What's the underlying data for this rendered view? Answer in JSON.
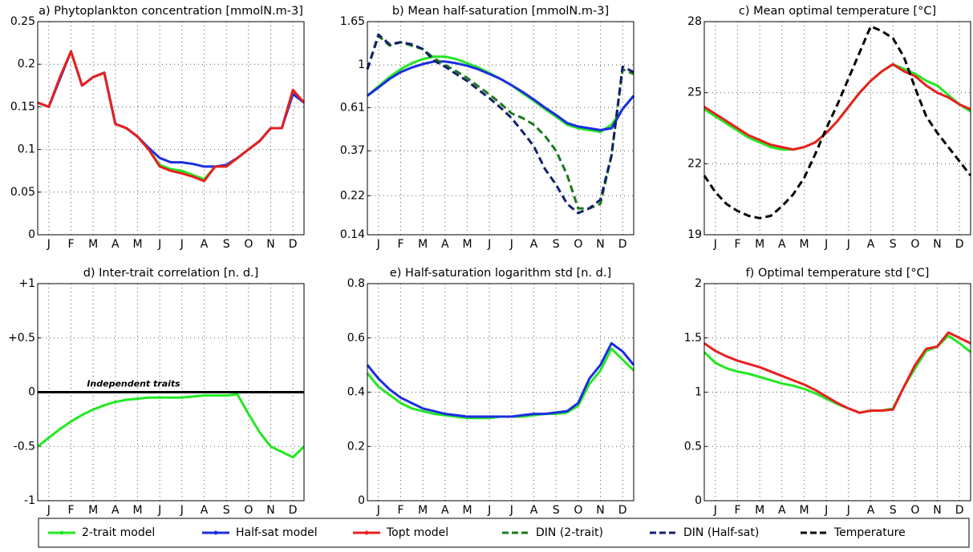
{
  "chart_data": [
    {
      "type": "line",
      "title": "a) Phytoplankton concentration [mmolN.m-3]",
      "x": [
        0,
        0.5,
        1,
        1.5,
        2,
        2.5,
        3,
        3.5,
        4,
        4.5,
        5,
        5.5,
        6,
        6.5,
        7,
        7.5,
        8,
        8.5,
        9,
        9.5,
        10,
        10.5,
        11,
        11.5,
        12
      ],
      "xlim": [
        0,
        12
      ],
      "xticks": [
        {
          "value": 0.5,
          "label": "J"
        },
        {
          "value": 1.5,
          "label": "F"
        },
        {
          "value": 2.5,
          "label": "M"
        },
        {
          "value": 3.5,
          "label": "A"
        },
        {
          "value": 4.5,
          "label": "M"
        },
        {
          "value": 5.5,
          "label": "J"
        },
        {
          "value": 6.5,
          "label": "J"
        },
        {
          "value": 7.5,
          "label": "A"
        },
        {
          "value": 8.5,
          "label": "S"
        },
        {
          "value": 9.5,
          "label": "O"
        },
        {
          "value": 10.5,
          "label": "N"
        },
        {
          "value": 11.5,
          "label": "D"
        }
      ],
      "ylim": [
        0,
        0.25
      ],
      "yticks": [
        0,
        0.05,
        0.1,
        0.15,
        0.2,
        0.25
      ],
      "grid": true,
      "series": [
        {
          "name": "2-trait model",
          "color": "#22e822",
          "values": [
            0.155,
            0.15,
            0.183,
            0.215,
            0.175,
            0.185,
            0.19,
            0.13,
            0.125,
            0.115,
            0.1,
            0.082,
            0.077,
            0.075,
            0.07,
            0.065,
            0.08,
            0.08,
            0.09,
            0.1,
            0.11,
            0.125,
            0.125,
            0.168,
            0.155
          ]
        },
        {
          "name": "Half-sat model",
          "color": "#1a2ee0",
          "values": [
            0.155,
            0.15,
            0.183,
            0.215,
            0.175,
            0.185,
            0.19,
            0.13,
            0.125,
            0.115,
            0.102,
            0.09,
            0.085,
            0.085,
            0.083,
            0.08,
            0.08,
            0.082,
            0.09,
            0.1,
            0.11,
            0.125,
            0.125,
            0.165,
            0.155
          ]
        },
        {
          "name": "Topt model",
          "color": "#e82020",
          "values": [
            0.155,
            0.15,
            0.185,
            0.215,
            0.175,
            0.185,
            0.19,
            0.13,
            0.125,
            0.115,
            0.1,
            0.08,
            0.075,
            0.072,
            0.068,
            0.063,
            0.08,
            0.08,
            0.09,
            0.1,
            0.11,
            0.125,
            0.125,
            0.17,
            0.155
          ]
        }
      ]
    },
    {
      "type": "line",
      "title": "b) Mean half-saturation [mmolN.m-3]",
      "x": [
        0,
        0.5,
        1,
        1.5,
        2,
        2.5,
        3,
        3.5,
        4,
        4.5,
        5,
        5.5,
        6,
        6.5,
        7,
        7.5,
        8,
        8.5,
        9,
        9.5,
        10,
        10.5,
        11,
        11.5,
        12
      ],
      "xlim": [
        0,
        12
      ],
      "xticks": [
        {
          "value": 0.5,
          "label": "J"
        },
        {
          "value": 1.5,
          "label": "F"
        },
        {
          "value": 2.5,
          "label": "M"
        },
        {
          "value": 3.5,
          "label": "A"
        },
        {
          "value": 4.5,
          "label": "M"
        },
        {
          "value": 5.5,
          "label": "J"
        },
        {
          "value": 6.5,
          "label": "J"
        },
        {
          "value": 7.5,
          "label": "A"
        },
        {
          "value": 8.5,
          "label": "S"
        },
        {
          "value": 9.5,
          "label": "O"
        },
        {
          "value": 10.5,
          "label": "N"
        },
        {
          "value": 11.5,
          "label": "D"
        }
      ],
      "ylim": [
        0.14,
        1.65
      ],
      "yticks": [
        0.14,
        0.22,
        0.37,
        0.61,
        1,
        1.65
      ],
      "log": true,
      "grid": true,
      "series": [
        {
          "name": "2-trait model",
          "color": "#22e822",
          "values": [
            0.7,
            0.78,
            0.87,
            0.95,
            1.02,
            1.07,
            1.1,
            1.1,
            1.07,
            1.02,
            0.97,
            0.91,
            0.85,
            0.79,
            0.72,
            0.66,
            0.6,
            0.55,
            0.5,
            0.48,
            0.47,
            0.46,
            0.5,
            0.6,
            0.7
          ]
        },
        {
          "name": "Half-sat model",
          "color": "#1a2ee0",
          "values": [
            0.7,
            0.77,
            0.85,
            0.92,
            0.97,
            1.01,
            1.04,
            1.04,
            1.02,
            0.99,
            0.95,
            0.9,
            0.85,
            0.79,
            0.73,
            0.67,
            0.61,
            0.56,
            0.51,
            0.49,
            0.48,
            0.47,
            0.48,
            0.6,
            0.7
          ]
        },
        {
          "name": "DIN (2-trait)",
          "color": "#1a7a1a",
          "dashed": true,
          "values": [
            0.95,
            1.4,
            1.25,
            1.3,
            1.25,
            1.2,
            1.08,
            1.0,
            0.93,
            0.86,
            0.78,
            0.71,
            0.64,
            0.57,
            0.54,
            0.5,
            0.44,
            0.37,
            0.28,
            0.19,
            0.19,
            0.2,
            0.35,
            0.95,
            0.9
          ]
        },
        {
          "name": "DIN (Half-sat)",
          "color": "#14206e",
          "dashed": true,
          "values": [
            0.95,
            1.42,
            1.27,
            1.3,
            1.27,
            1.2,
            1.05,
            0.98,
            0.9,
            0.83,
            0.75,
            0.68,
            0.61,
            0.54,
            0.46,
            0.39,
            0.3,
            0.25,
            0.2,
            0.18,
            0.19,
            0.21,
            0.35,
            0.98,
            0.92
          ]
        },
        {
          "name": "Temperature",
          "color": "#000000",
          "dashed": true,
          "values": [
            null,
            null,
            null,
            null,
            null,
            null,
            null,
            null,
            null,
            null,
            null,
            null,
            null,
            null,
            null,
            null,
            null,
            null,
            null,
            null,
            null,
            null,
            null,
            null,
            null
          ]
        }
      ]
    },
    {
      "type": "line",
      "title": "c) Mean optimal temperature [°C]",
      "x": [
        0,
        0.5,
        1,
        1.5,
        2,
        2.5,
        3,
        3.5,
        4,
        4.5,
        5,
        5.5,
        6,
        6.5,
        7,
        7.5,
        8,
        8.5,
        9,
        9.5,
        10,
        10.5,
        11,
        11.5,
        12
      ],
      "xlim": [
        0,
        12
      ],
      "xticks": [
        {
          "value": 0.5,
          "label": "J"
        },
        {
          "value": 1.5,
          "label": "F"
        },
        {
          "value": 2.5,
          "label": "M"
        },
        {
          "value": 3.5,
          "label": "A"
        },
        {
          "value": 4.5,
          "label": "M"
        },
        {
          "value": 5.5,
          "label": "J"
        },
        {
          "value": 6.5,
          "label": "J"
        },
        {
          "value": 7.5,
          "label": "A"
        },
        {
          "value": 8.5,
          "label": "S"
        },
        {
          "value": 9.5,
          "label": "O"
        },
        {
          "value": 10.5,
          "label": "N"
        },
        {
          "value": 11.5,
          "label": "D"
        }
      ],
      "ylim": [
        19,
        28
      ],
      "yticks": [
        19,
        22,
        25,
        28
      ],
      "grid": true,
      "series": [
        {
          "name": "2-trait model",
          "color": "#22e822",
          "values": [
            24.3,
            24.0,
            23.7,
            23.4,
            23.1,
            22.9,
            22.7,
            22.6,
            22.6,
            22.7,
            22.9,
            23.3,
            23.8,
            24.4,
            25.0,
            25.5,
            25.9,
            26.2,
            26.0,
            25.8,
            25.5,
            25.3,
            24.9,
            24.5,
            24.2
          ]
        },
        {
          "name": "Topt model",
          "color": "#e82020",
          "values": [
            24.4,
            24.1,
            23.8,
            23.5,
            23.2,
            23.0,
            22.8,
            22.7,
            22.6,
            22.7,
            22.9,
            23.3,
            23.8,
            24.4,
            25.0,
            25.5,
            25.9,
            26.2,
            25.9,
            25.7,
            25.3,
            25.0,
            24.8,
            24.5,
            24.3
          ]
        },
        {
          "name": "Temperature",
          "color": "#000000",
          "dashed": true,
          "values": [
            21.5,
            20.8,
            20.3,
            20.0,
            19.8,
            19.7,
            19.8,
            20.2,
            20.7,
            21.4,
            22.4,
            23.5,
            24.5,
            25.6,
            26.7,
            27.8,
            27.6,
            27.3,
            26.5,
            25.2,
            24.0,
            23.3,
            22.7,
            22.1,
            21.5
          ]
        }
      ]
    },
    {
      "type": "line",
      "title": "d) Inter-trait correlation [n. d.]",
      "x": [
        0,
        0.5,
        1,
        1.5,
        2,
        2.5,
        3,
        3.5,
        4,
        4.5,
        5,
        5.5,
        6,
        6.5,
        7,
        7.5,
        8,
        8.5,
        9,
        9.5,
        10,
        10.5,
        11,
        11.5,
        12
      ],
      "xlim": [
        0,
        12
      ],
      "xticks": [
        {
          "value": 0.5,
          "label": "J"
        },
        {
          "value": 1.5,
          "label": "F"
        },
        {
          "value": 2.5,
          "label": "M"
        },
        {
          "value": 3.5,
          "label": "A"
        },
        {
          "value": 4.5,
          "label": "M"
        },
        {
          "value": 5.5,
          "label": "J"
        },
        {
          "value": 6.5,
          "label": "J"
        },
        {
          "value": 7.5,
          "label": "A"
        },
        {
          "value": 8.5,
          "label": "S"
        },
        {
          "value": 9.5,
          "label": "O"
        },
        {
          "value": 10.5,
          "label": "N"
        },
        {
          "value": 11.5,
          "label": "D"
        }
      ],
      "ylim": [
        -1,
        1
      ],
      "yticks": [
        -1,
        -0.5,
        0,
        {
          "value": 0.5,
          "label": "+0.5"
        },
        {
          "value": 1,
          "label": "+1"
        }
      ],
      "grid": true,
      "reference_line": {
        "value": 0,
        "label": "Independent traits"
      },
      "series": [
        {
          "name": "2-trait model",
          "color": "#22e822",
          "values": [
            -0.5,
            -0.42,
            -0.34,
            -0.27,
            -0.21,
            -0.16,
            -0.12,
            -0.09,
            -0.07,
            -0.06,
            -0.05,
            -0.05,
            -0.05,
            -0.05,
            -0.04,
            -0.03,
            -0.03,
            -0.03,
            -0.02,
            -0.2,
            -0.37,
            -0.5,
            -0.55,
            -0.6,
            -0.5
          ]
        }
      ]
    },
    {
      "type": "line",
      "title": "e) Half-saturation logarithm std [n. d.]",
      "x": [
        0,
        0.5,
        1,
        1.5,
        2,
        2.5,
        3,
        3.5,
        4,
        4.5,
        5,
        5.5,
        6,
        6.5,
        7,
        7.5,
        8,
        8.5,
        9,
        9.5,
        10,
        10.5,
        11,
        11.5,
        12
      ],
      "xlim": [
        0,
        12
      ],
      "xticks": [
        {
          "value": 0.5,
          "label": "J"
        },
        {
          "value": 1.5,
          "label": "F"
        },
        {
          "value": 2.5,
          "label": "M"
        },
        {
          "value": 3.5,
          "label": "A"
        },
        {
          "value": 4.5,
          "label": "M"
        },
        {
          "value": 5.5,
          "label": "J"
        },
        {
          "value": 6.5,
          "label": "J"
        },
        {
          "value": 7.5,
          "label": "A"
        },
        {
          "value": 8.5,
          "label": "S"
        },
        {
          "value": 9.5,
          "label": "O"
        },
        {
          "value": 10.5,
          "label": "N"
        },
        {
          "value": 11.5,
          "label": "D"
        }
      ],
      "ylim": [
        0,
        0.8
      ],
      "yticks": [
        0,
        0.2,
        0.4,
        0.6,
        0.8
      ],
      "grid": true,
      "series": [
        {
          "name": "2-trait model",
          "color": "#22e822",
          "values": [
            0.47,
            0.42,
            0.39,
            0.36,
            0.34,
            0.33,
            0.32,
            0.315,
            0.31,
            0.305,
            0.305,
            0.305,
            0.31,
            0.31,
            0.31,
            0.315,
            0.32,
            0.32,
            0.325,
            0.35,
            0.43,
            0.48,
            0.56,
            0.52,
            0.48
          ]
        },
        {
          "name": "Half-sat model",
          "color": "#1a2ee0",
          "values": [
            0.5,
            0.45,
            0.41,
            0.38,
            0.36,
            0.34,
            0.33,
            0.32,
            0.315,
            0.31,
            0.31,
            0.31,
            0.31,
            0.31,
            0.315,
            0.32,
            0.32,
            0.325,
            0.33,
            0.36,
            0.45,
            0.5,
            0.58,
            0.55,
            0.5
          ]
        }
      ]
    },
    {
      "type": "line",
      "title": "f) Optimal temperature std [°C]",
      "x": [
        0,
        0.5,
        1,
        1.5,
        2,
        2.5,
        3,
        3.5,
        4,
        4.5,
        5,
        5.5,
        6,
        6.5,
        7,
        7.5,
        8,
        8.5,
        9,
        9.5,
        10,
        10.5,
        11,
        11.5,
        12
      ],
      "xlim": [
        0,
        12
      ],
      "xticks": [
        {
          "value": 0.5,
          "label": "J"
        },
        {
          "value": 1.5,
          "label": "F"
        },
        {
          "value": 2.5,
          "label": "M"
        },
        {
          "value": 3.5,
          "label": "A"
        },
        {
          "value": 4.5,
          "label": "M"
        },
        {
          "value": 5.5,
          "label": "J"
        },
        {
          "value": 6.5,
          "label": "J"
        },
        {
          "value": 7.5,
          "label": "A"
        },
        {
          "value": 8.5,
          "label": "S"
        },
        {
          "value": 9.5,
          "label": "O"
        },
        {
          "value": 10.5,
          "label": "N"
        },
        {
          "value": 11.5,
          "label": "D"
        }
      ],
      "ylim": [
        0,
        2
      ],
      "yticks": [
        0,
        0.5,
        1,
        1.5,
        2
      ],
      "grid": true,
      "series": [
        {
          "name": "2-trait model",
          "color": "#22e822",
          "values": [
            1.37,
            1.27,
            1.22,
            1.19,
            1.17,
            1.14,
            1.11,
            1.08,
            1.06,
            1.03,
            0.99,
            0.94,
            0.89,
            0.85,
            0.81,
            0.83,
            0.83,
            0.85,
            1.05,
            1.22,
            1.38,
            1.42,
            1.52,
            1.45,
            1.37
          ]
        },
        {
          "name": "Topt model",
          "color": "#e82020",
          "values": [
            1.45,
            1.38,
            1.33,
            1.29,
            1.26,
            1.23,
            1.19,
            1.15,
            1.11,
            1.07,
            1.02,
            0.96,
            0.9,
            0.85,
            0.81,
            0.83,
            0.83,
            0.84,
            1.05,
            1.25,
            1.4,
            1.42,
            1.55,
            1.5,
            1.45
          ]
        }
      ]
    }
  ]
}
